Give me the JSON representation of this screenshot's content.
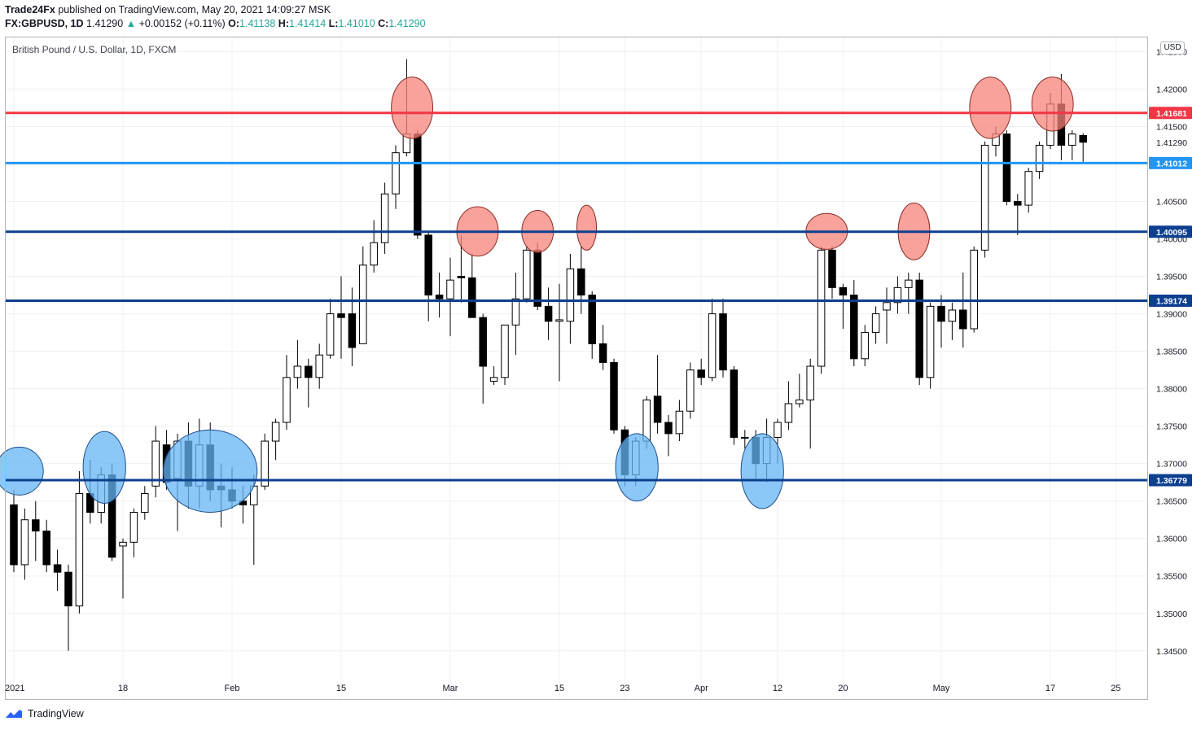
{
  "header": {
    "publisher": "Trade24Fx",
    "published_text": "published on TradingView.com, May 20, 2021 14:09:27 MSK",
    "symbol": "FX:GBPUSD, 1D",
    "last": "1.41290",
    "change": "+0.00152 (+0.11%)",
    "o_label": "O:",
    "o_value": "1.41138",
    "h_label": "H:",
    "h_value": "1.41414",
    "l_label": "L:",
    "l_value": "1.41010",
    "c_label": "C:",
    "c_value": "1.41290"
  },
  "legend_title": "British Pound / U.S. Dollar, 1D, FXCM",
  "currency_badge": "USD",
  "footer": {
    "brand": "TradingView"
  },
  "colors": {
    "up_body": "#ffffff",
    "down_body": "#000000",
    "wick": "#000000",
    "red_line": "#f23645",
    "light_blue_line": "#2196f3",
    "dark_blue_line": "#0d3f8f",
    "red_circle": "#f7837a",
    "blue_circle": "#64b5f6",
    "grid": "#eef0f3"
  },
  "chart_data": {
    "type": "candlestick",
    "title": "British Pound / U.S. Dollar, 1D, FXCM",
    "ylim": [
      1.3415,
      1.427
    ],
    "y_ticks": [
      "1.34500",
      "1.35000",
      "1.35500",
      "1.36000",
      "1.36500",
      "1.37000",
      "1.37500",
      "1.38000",
      "1.38500",
      "1.39000",
      "1.39500",
      "1.40000",
      "1.40500",
      "1.41000",
      "1.41290",
      "1.41500",
      "1.42000",
      "1.42500"
    ],
    "x_ticks": [
      {
        "label": "2021",
        "index": 0
      },
      {
        "label": "18",
        "index": 10
      },
      {
        "label": "Feb",
        "index": 20
      },
      {
        "label": "15",
        "index": 30
      },
      {
        "label": "Mar",
        "index": 40
      },
      {
        "label": "15",
        "index": 50
      },
      {
        "label": "23",
        "index": 56
      },
      {
        "label": "Apr",
        "index": 63
      },
      {
        "label": "12",
        "index": 70
      },
      {
        "label": "20",
        "index": 76
      },
      {
        "label": "May",
        "index": 85
      },
      {
        "label": "17",
        "index": 95
      },
      {
        "label": "25",
        "index": 101
      }
    ],
    "levels": [
      {
        "value": 1.41681,
        "label": "1.41681",
        "color": "#f23645"
      },
      {
        "value": 1.41012,
        "label": "1.41012",
        "color": "#2196f3"
      },
      {
        "value": 1.40095,
        "label": "1.40095",
        "color": "#0d3f8f"
      },
      {
        "value": 1.39174,
        "label": "1.39174",
        "color": "#0d3f8f"
      },
      {
        "value": 1.36779,
        "label": "1.36779",
        "color": "#0d3f8f"
      }
    ],
    "last_price": {
      "value": 1.4129,
      "label": "1.41290"
    },
    "candles": [
      [
        1.3645,
        1.3665,
        1.3555,
        1.3565
      ],
      [
        1.3565,
        1.364,
        1.3545,
        1.3625
      ],
      [
        1.3625,
        1.365,
        1.357,
        1.361
      ],
      [
        1.361,
        1.3625,
        1.3555,
        1.3565
      ],
      [
        1.3565,
        1.3585,
        1.353,
        1.3555
      ],
      [
        1.3555,
        1.3565,
        1.345,
        1.351
      ],
      [
        1.351,
        1.369,
        1.35,
        1.366
      ],
      [
        1.366,
        1.3705,
        1.362,
        1.3635
      ],
      [
        1.3635,
        1.3695,
        1.362,
        1.3685
      ],
      [
        1.3685,
        1.37,
        1.357,
        1.3575
      ],
      [
        1.359,
        1.36,
        1.352,
        1.3595
      ],
      [
        1.3595,
        1.364,
        1.3575,
        1.3635
      ],
      [
        1.3635,
        1.367,
        1.3625,
        1.366
      ],
      [
        1.367,
        1.375,
        1.3655,
        1.373
      ],
      [
        1.3725,
        1.3745,
        1.3665,
        1.3675
      ],
      [
        1.368,
        1.374,
        1.361,
        1.373
      ],
      [
        1.373,
        1.3755,
        1.364,
        1.367
      ],
      [
        1.367,
        1.376,
        1.364,
        1.3725
      ],
      [
        1.3725,
        1.3755,
        1.365,
        1.3665
      ],
      [
        1.367,
        1.37,
        1.3615,
        1.3665
      ],
      [
        1.3665,
        1.3695,
        1.364,
        1.365
      ],
      [
        1.365,
        1.367,
        1.362,
        1.3645
      ],
      [
        1.3645,
        1.3685,
        1.3565,
        1.367
      ],
      [
        1.367,
        1.374,
        1.3665,
        1.373
      ],
      [
        1.373,
        1.376,
        1.3705,
        1.3755
      ],
      [
        1.3755,
        1.3845,
        1.3745,
        1.3815
      ],
      [
        1.3815,
        1.3865,
        1.38,
        1.383
      ],
      [
        1.383,
        1.384,
        1.3775,
        1.3815
      ],
      [
        1.3815,
        1.386,
        1.38,
        1.3845
      ],
      [
        1.3845,
        1.392,
        1.384,
        1.39
      ],
      [
        1.39,
        1.395,
        1.384,
        1.3895
      ],
      [
        1.39,
        1.3935,
        1.383,
        1.3855
      ],
      [
        1.386,
        1.399,
        1.386,
        1.3965
      ],
      [
        1.3965,
        1.4025,
        1.3955,
        1.3995
      ],
      [
        1.3995,
        1.4075,
        1.398,
        1.406
      ],
      [
        1.406,
        1.4125,
        1.404,
        1.4115
      ],
      [
        1.4115,
        1.424,
        1.411,
        1.414
      ],
      [
        1.414,
        1.4145,
        1.4,
        1.4005
      ],
      [
        1.4005,
        1.401,
        1.389,
        1.3925
      ],
      [
        1.3925,
        1.3955,
        1.3895,
        1.392
      ],
      [
        1.392,
        1.3975,
        1.387,
        1.3945
      ],
      [
        1.395,
        1.4005,
        1.3915,
        1.3948
      ],
      [
        1.3948,
        1.398,
        1.3895,
        1.3895
      ],
      [
        1.3895,
        1.39,
        1.378,
        1.383
      ],
      [
        1.381,
        1.383,
        1.3805,
        1.3815
      ],
      [
        1.3815,
        1.3885,
        1.3805,
        1.3885
      ],
      [
        1.3885,
        1.3955,
        1.3845,
        1.392
      ],
      [
        1.392,
        1.399,
        1.3915,
        1.3985
      ],
      [
        1.3985,
        1.3995,
        1.3905,
        1.391
      ],
      [
        1.391,
        1.3935,
        1.3865,
        1.389
      ],
      [
        1.389,
        1.394,
        1.381,
        1.3892
      ],
      [
        1.389,
        1.398,
        1.386,
        1.396
      ],
      [
        1.396,
        1.399,
        1.39,
        1.3925
      ],
      [
        1.3925,
        1.393,
        1.384,
        1.386
      ],
      [
        1.386,
        1.3885,
        1.3825,
        1.3835
      ],
      [
        1.3835,
        1.384,
        1.374,
        1.3745
      ],
      [
        1.3745,
        1.375,
        1.367,
        1.3685
      ],
      [
        1.3685,
        1.3735,
        1.367,
        1.373
      ],
      [
        1.373,
        1.379,
        1.372,
        1.3785
      ],
      [
        1.379,
        1.3845,
        1.374,
        1.3755
      ],
      [
        1.3755,
        1.3765,
        1.371,
        1.374
      ],
      [
        1.374,
        1.3785,
        1.373,
        1.377
      ],
      [
        1.377,
        1.3835,
        1.376,
        1.3825
      ],
      [
        1.3825,
        1.384,
        1.3805,
        1.3815
      ],
      [
        1.3815,
        1.392,
        1.381,
        1.39
      ],
      [
        1.39,
        1.392,
        1.3815,
        1.3825
      ],
      [
        1.3825,
        1.383,
        1.3725,
        1.3735
      ],
      [
        1.3735,
        1.3745,
        1.372,
        1.3735
      ],
      [
        1.3735,
        1.3745,
        1.368,
        1.37
      ],
      [
        1.37,
        1.376,
        1.3675,
        1.3735
      ],
      [
        1.3735,
        1.376,
        1.37,
        1.3755
      ],
      [
        1.3755,
        1.381,
        1.3745,
        1.378
      ],
      [
        1.378,
        1.382,
        1.3775,
        1.3785
      ],
      [
        1.3785,
        1.384,
        1.372,
        1.383
      ],
      [
        1.383,
        1.399,
        1.382,
        1.3985
      ],
      [
        1.3985,
        1.399,
        1.392,
        1.3935
      ],
      [
        1.3935,
        1.394,
        1.388,
        1.3925
      ],
      [
        1.3925,
        1.3945,
        1.383,
        1.384
      ],
      [
        1.384,
        1.3885,
        1.383,
        1.3875
      ],
      [
        1.3875,
        1.391,
        1.386,
        1.39
      ],
      [
        1.3905,
        1.3935,
        1.386,
        1.3915
      ],
      [
        1.3915,
        1.395,
        1.39,
        1.3935
      ],
      [
        1.3935,
        1.3955,
        1.39,
        1.3945
      ],
      [
        1.3945,
        1.3955,
        1.3805,
        1.3815
      ],
      [
        1.3815,
        1.3915,
        1.38,
        1.391
      ],
      [
        1.391,
        1.3925,
        1.3855,
        1.389
      ],
      [
        1.389,
        1.3915,
        1.3865,
        1.3905
      ],
      [
        1.3905,
        1.3955,
        1.3855,
        1.388
      ],
      [
        1.388,
        1.399,
        1.3875,
        1.3985
      ],
      [
        1.3985,
        1.413,
        1.3975,
        1.4125
      ],
      [
        1.4125,
        1.415,
        1.411,
        1.414
      ],
      [
        1.414,
        1.4145,
        1.4045,
        1.405
      ],
      [
        1.405,
        1.406,
        1.4005,
        1.4045
      ],
      [
        1.4045,
        1.4095,
        1.4035,
        1.409
      ],
      [
        1.409,
        1.413,
        1.408,
        1.4125
      ],
      [
        1.4125,
        1.4195,
        1.412,
        1.418
      ],
      [
        1.418,
        1.422,
        1.4105,
        1.4125
      ],
      [
        1.4125,
        1.4145,
        1.4105,
        1.414
      ],
      [
        1.4138,
        1.4141,
        1.4101,
        1.4129
      ]
    ],
    "highlight_circles": [
      {
        "kind": "resistance",
        "index": 36.5,
        "value": 1.4175,
        "rx_bars": 1.9,
        "ry_price": 0.0041
      },
      {
        "kind": "resistance",
        "index": 42.5,
        "value": 1.401,
        "rx_bars": 1.9,
        "ry_price": 0.0033
      },
      {
        "kind": "resistance",
        "index": 48,
        "value": 1.401,
        "rx_bars": 1.45,
        "ry_price": 0.0028
      },
      {
        "kind": "resistance",
        "index": 52.5,
        "value": 1.4015,
        "rx_bars": 0.9,
        "ry_price": 0.003
      },
      {
        "kind": "resistance",
        "index": 74.5,
        "value": 1.401,
        "rx_bars": 1.9,
        "ry_price": 0.0024
      },
      {
        "kind": "resistance",
        "index": 82.5,
        "value": 1.401,
        "rx_bars": 1.45,
        "ry_price": 0.0038
      },
      {
        "kind": "resistance",
        "index": 89.5,
        "value": 1.4175,
        "rx_bars": 1.9,
        "ry_price": 0.0041
      },
      {
        "kind": "resistance",
        "index": 95.2,
        "value": 1.418,
        "rx_bars": 1.9,
        "ry_price": 0.0036
      },
      {
        "kind": "support",
        "index": 0.5,
        "value": 1.369,
        "rx_bars": 2.2,
        "ry_price": 0.0032
      },
      {
        "kind": "support",
        "index": 8.3,
        "value": 1.3695,
        "rx_bars": 1.95,
        "ry_price": 0.0048
      },
      {
        "kind": "support",
        "index": 18,
        "value": 1.369,
        "rx_bars": 4.3,
        "ry_price": 0.0055
      },
      {
        "kind": "support",
        "index": 57.1,
        "value": 1.3695,
        "rx_bars": 1.95,
        "ry_price": 0.0045
      },
      {
        "kind": "support",
        "index": 68.6,
        "value": 1.369,
        "rx_bars": 1.95,
        "ry_price": 0.005
      }
    ]
  }
}
